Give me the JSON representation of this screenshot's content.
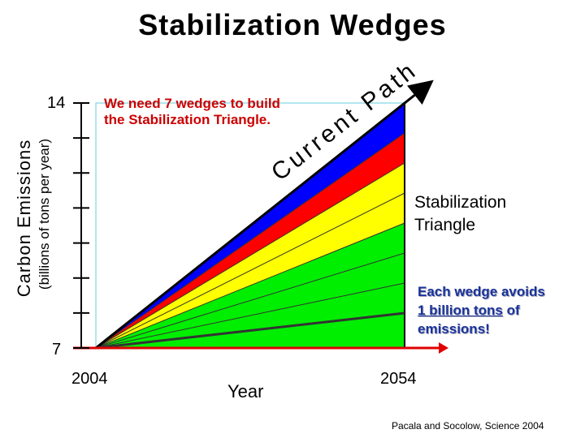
{
  "title": "Stabilization Wedges",
  "callout": {
    "need_wedges": "We need 7 wedges to build the Stabilization Triangle.",
    "triangle_line1": "Stabilization",
    "triangle_line2": "Triangle",
    "wedge_pre": "Each wedge avoids",
    "wedge_underlined": "1 billion tons",
    "wedge_mid": " of",
    "wedge_post": "emissions!"
  },
  "current_path_label": "Current Path",
  "axes": {
    "y_label": "Carbon Emissions",
    "y_units": "(billions of tons per year)",
    "y_tick_top": "14",
    "y_tick_bottom": "7",
    "x_label": "Year",
    "x_tick_start": "2004",
    "x_tick_end": "2054"
  },
  "credit": "Pacala and Socolow, Science 2004",
  "colors": {
    "wedge_blue": "#0000ff",
    "wedge_red": "#ff0000",
    "wedge_yellow": "#ffff00",
    "wedge_green": "#00ee00",
    "red_arrow": "#e00000",
    "text_red": "#cc0000",
    "text_blue": "#1a3399"
  },
  "chart_data": {
    "type": "area",
    "x": [
      2004,
      2054
    ],
    "ylim": [
      7,
      14
    ],
    "y_ticks": [
      7,
      8,
      9,
      10,
      11,
      12,
      13,
      14
    ],
    "current_path": {
      "start": [
        2004,
        7
      ],
      "end": [
        2054,
        14
      ]
    },
    "flat_path": {
      "start": [
        2004,
        7
      ],
      "end": [
        2054,
        7
      ]
    },
    "wedges_total": 7,
    "wedges_per_band": {
      "blue": 1,
      "red": 1,
      "yellow": 2,
      "green": 3
    },
    "wedge_avoids_billion_tons": 1
  }
}
